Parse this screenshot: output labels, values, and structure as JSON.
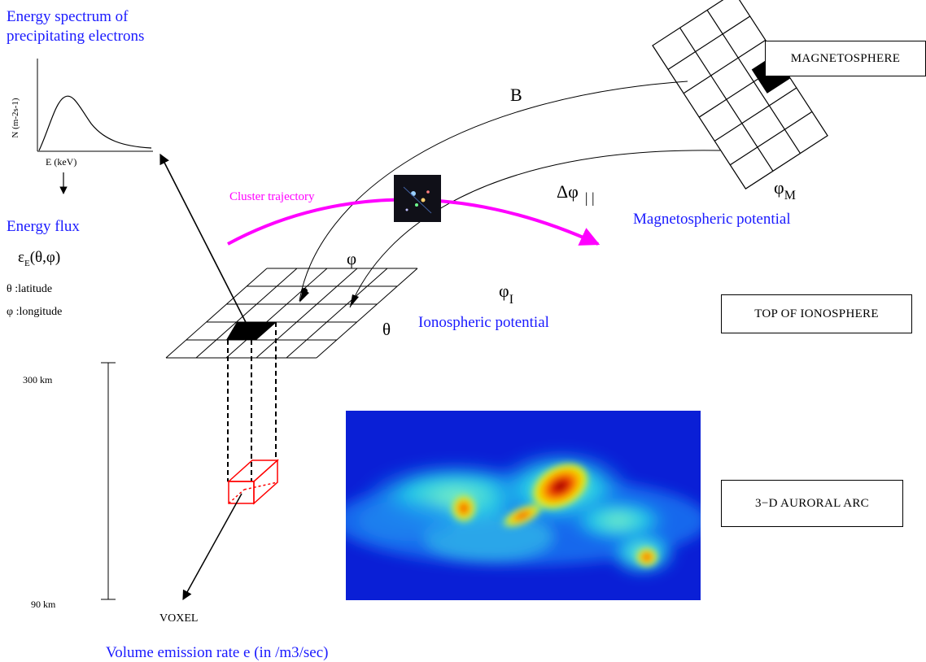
{
  "spectrum": {
    "title_line1": "Energy spectrum of",
    "title_line2": "precipitating electrons",
    "y_axis": "N (m-2s-1)",
    "x_axis": "E (keV)"
  },
  "energy_flux": {
    "title": "Energy flux",
    "formula_epsilon": "ε",
    "formula_sub": "E",
    "formula_args": "(θ,φ)",
    "theta_def": "θ :latitude",
    "phi_def": "φ :longitude"
  },
  "altitude": {
    "top": "300 km",
    "bottom": "90 km"
  },
  "labels": {
    "voxel": "VOXEL",
    "volume_emission": "Volume emission rate e (in /m3/sec)",
    "cluster_trajectory": "Cluster trajectory",
    "b_field": "B",
    "delta_phi": "Δφ",
    "delta_phi_sub": "| |",
    "phi_m": "φ",
    "phi_m_sub": "M",
    "magnetospheric_potential": "Magnetospheric potential",
    "phi_i": "φ",
    "phi_i_sub": "I",
    "ionospheric_potential": "Ionospheric potential",
    "grid_phi": "φ",
    "grid_theta": "θ"
  },
  "boxes": {
    "magnetosphere": "MAGNETOSPHERE",
    "top_ionosphere": "TOP OF IONOSPHERE",
    "auroral_arc": "3−D AURORAL ARC"
  },
  "colors": {
    "title_blue": "#1a1aff",
    "trajectory_magenta": "#ff00ff",
    "voxel_red": "#ff0000",
    "aurora_background": "#0a1fd6"
  }
}
